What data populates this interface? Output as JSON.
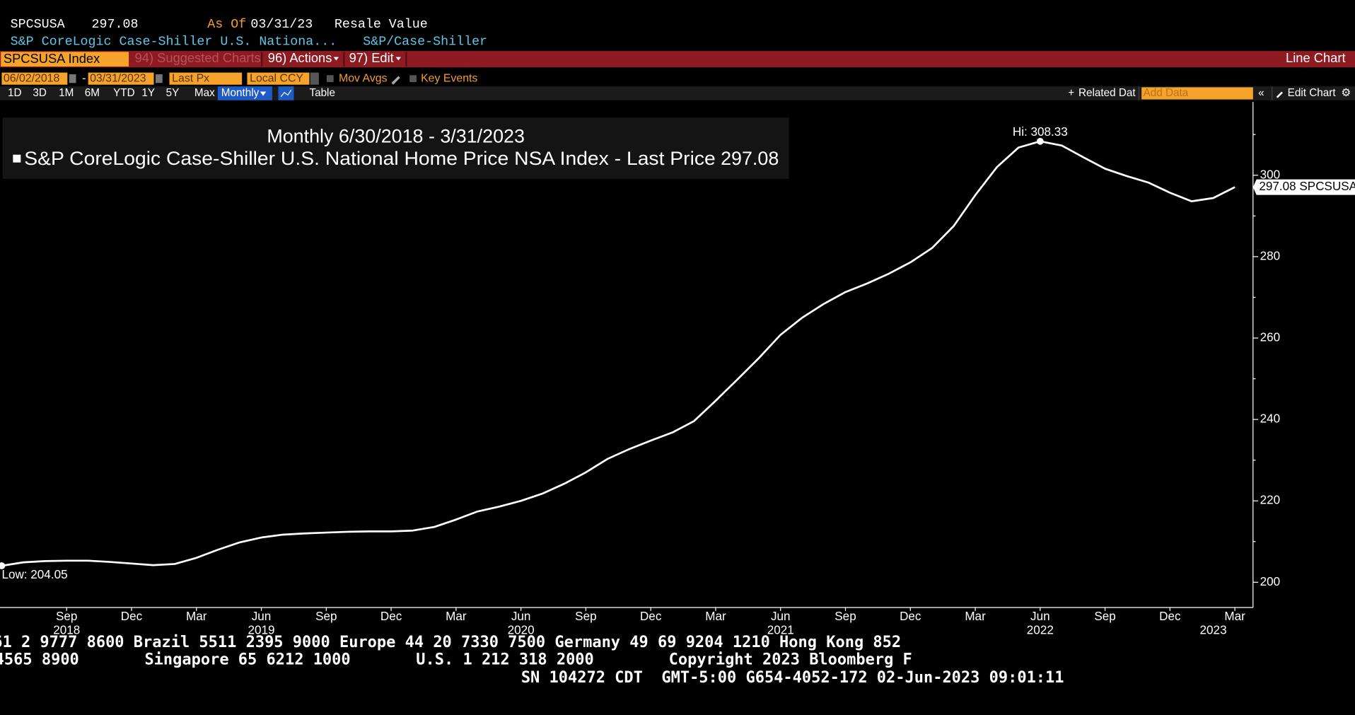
{
  "header": {
    "ticker": "SPCSUSA",
    "price": "297.08",
    "as_of_label": "As Of",
    "as_of": "03/31/23",
    "field": "Resale Value",
    "name": "S&P CoreLogic Case-Shiller U.S. Nationa...",
    "source": "S&P/Case-Shiller"
  },
  "menu": {
    "security": "SPCSUSA Index",
    "suggested": "94) Suggested Charts",
    "actions": "96) Actions",
    "edit": "97) Edit",
    "chart_type": "Line Chart"
  },
  "toolbar": {
    "start": "06/02/2018",
    "end": "03/31/2023",
    "field": "Last Px",
    "currency": "Local CCY",
    "mov_avgs": "Mov Avgs",
    "key_events": "Key Events",
    "periods": [
      "1D",
      "3D",
      "1M",
      "6M",
      "YTD",
      "1Y",
      "5Y",
      "Max"
    ],
    "frequency": "Monthly",
    "table": "Table",
    "related": "Related Dat",
    "add_data": "Add Data",
    "edit_chart": "Edit Chart"
  },
  "chart_data": {
    "type": "line",
    "title": "Monthly 6/30/2018 - 3/31/2023",
    "legend_value": "297.08",
    "last_value_label": "297.08 SPCSUSA",
    "annotations": {
      "high": "Hi: 308.33",
      "low": "Low: 204.05"
    },
    "x": [
      "2018-06",
      "2018-07",
      "2018-08",
      "2018-09",
      "2018-10",
      "2018-11",
      "2018-12",
      "2019-01",
      "2019-02",
      "2019-03",
      "2019-04",
      "2019-05",
      "2019-06",
      "2019-07",
      "2019-08",
      "2019-09",
      "2019-10",
      "2019-11",
      "2019-12",
      "2020-01",
      "2020-02",
      "2020-03",
      "2020-04",
      "2020-05",
      "2020-06",
      "2020-07",
      "2020-08",
      "2020-09",
      "2020-10",
      "2020-11",
      "2020-12",
      "2021-01",
      "2021-02",
      "2021-03",
      "2021-04",
      "2021-05",
      "2021-06",
      "2021-07",
      "2021-08",
      "2021-09",
      "2021-10",
      "2021-11",
      "2021-12",
      "2022-01",
      "2022-02",
      "2022-03",
      "2022-04",
      "2022-05",
      "2022-06",
      "2022-07",
      "2022-08",
      "2022-09",
      "2022-10",
      "2022-11",
      "2022-12",
      "2023-01",
      "2023-02",
      "2023-03"
    ],
    "series": [
      {
        "name": "S&P CoreLogic Case-Shiller U.S. National Home Price NSA Index - Last Price",
        "color": "#ffffff",
        "values": [
          204.05,
          204.9,
          205.2,
          205.3,
          205.3,
          205.0,
          204.6,
          204.2,
          204.5,
          206,
          208,
          209.8,
          211,
          211.7,
          212,
          212.2,
          212.4,
          212.5,
          212.5,
          212.7,
          213.6,
          215.4,
          217.4,
          218.6,
          220,
          221.8,
          224.2,
          227,
          230.3,
          232.7,
          234.8,
          236.8,
          239.6,
          244.6,
          249.8,
          255.1,
          260.8,
          265,
          268.4,
          271.3,
          273.4,
          275.8,
          278.6,
          282.1,
          287.5,
          295.1,
          302,
          306.8,
          308.33,
          307.3,
          304.4,
          301.6,
          299.8,
          298.2,
          295.7,
          293.6,
          294.4,
          297.08
        ]
      }
    ],
    "ylim": [
      193.8,
      318
    ],
    "yticks": [
      200,
      220,
      240,
      260,
      280,
      300
    ],
    "minor_yticks": [
      210,
      230,
      250,
      270,
      290,
      310
    ],
    "xticks": [
      {
        "value": "2018-09",
        "label": "Sep"
      },
      {
        "value": "2018-12",
        "label": "Dec"
      },
      {
        "value": "2019-03",
        "label": "Mar"
      },
      {
        "value": "2019-06",
        "label": "Jun"
      },
      {
        "value": "2019-09",
        "label": "Sep"
      },
      {
        "value": "2019-12",
        "label": "Dec"
      },
      {
        "value": "2020-03",
        "label": "Mar"
      },
      {
        "value": "2020-06",
        "label": "Jun"
      },
      {
        "value": "2020-09",
        "label": "Sep"
      },
      {
        "value": "2020-12",
        "label": "Dec"
      },
      {
        "value": "2021-03",
        "label": "Mar"
      },
      {
        "value": "2021-06",
        "label": "Jun"
      },
      {
        "value": "2021-09",
        "label": "Sep"
      },
      {
        "value": "2021-12",
        "label": "Dec"
      },
      {
        "value": "2022-03",
        "label": "Mar"
      },
      {
        "value": "2022-06",
        "label": "Jun"
      },
      {
        "value": "2022-09",
        "label": "Sep"
      },
      {
        "value": "2022-12",
        "label": "Dec"
      },
      {
        "value": "2023-03",
        "label": "Mar"
      }
    ],
    "xtick_years": [
      {
        "value": "2018-09",
        "label": "2018"
      },
      {
        "value": "2019-06",
        "label": "2019"
      },
      {
        "value": "2020-06",
        "label": "2020"
      },
      {
        "value": "2021-06",
        "label": "2021"
      },
      {
        "value": "2022-06",
        "label": "2022"
      },
      {
        "value": "2023-02",
        "label": "2023"
      }
    ]
  },
  "footer": [
    "61 2 9777 8600 Brazil 5511 2395 9000 Europe 44 20 7330 7500 Germany 49 69 9204 1210 Hong Kong 852",
    "4565 8900       Singapore 65 6212 1000       U.S. 1 212 318 2000        Copyright 2023 Bloomberg F",
    "SN 104272 CDT  GMT-5:00 G654-4052-172 02-Jun-2023 09:01:11"
  ]
}
